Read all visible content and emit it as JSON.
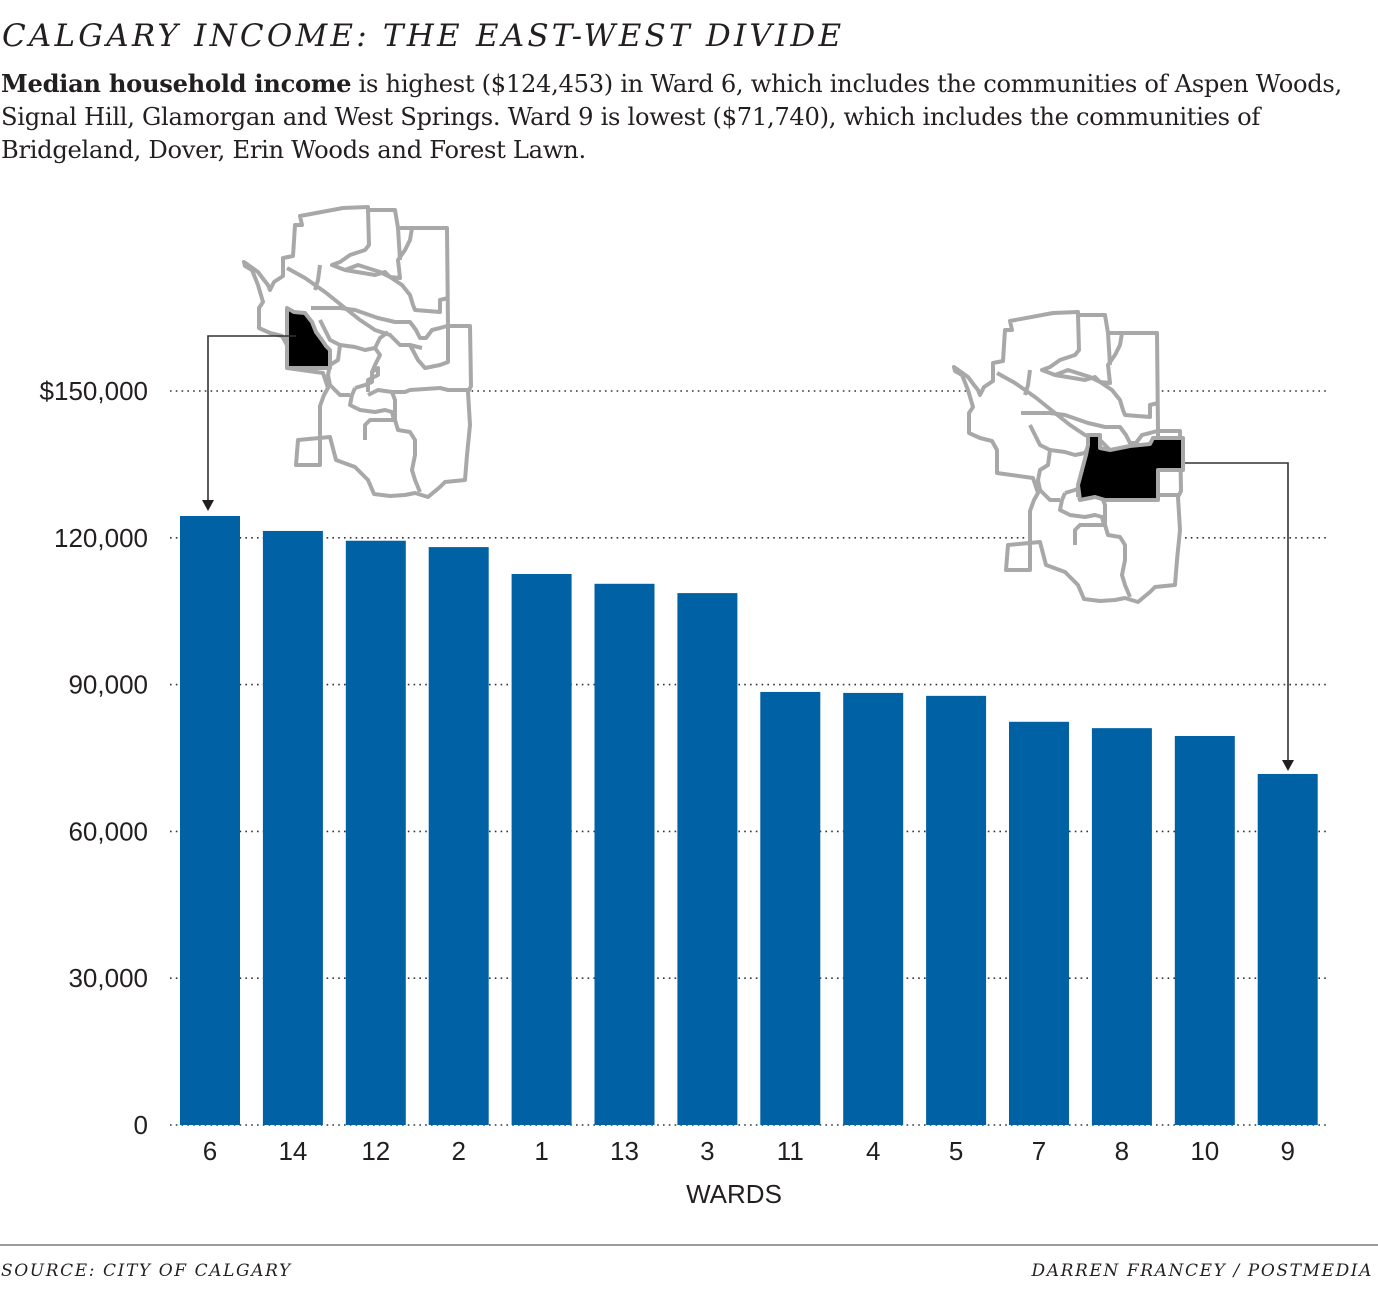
{
  "header": {
    "title": "CALGARY INCOME: THE EAST-WEST DIVIDE",
    "subtitle_bold": "Median household income",
    "subtitle_rest": " is highest ($124,453) in Ward 6, which includes the communities of Aspen Woods, Signal Hill, Glamorgan and West Springs. Ward 9 is lowest ($71,740), which includes the communities of Bridgeland, Dover, Erin Woods and Forest Lawn."
  },
  "footer": {
    "source": "SOURCE: CITY OF CALGARY",
    "credit": "DARREN FRANCEY / POSTMEDIA"
  },
  "colors": {
    "bar": "#0061a5",
    "text": "#231f20",
    "grid": "#333333",
    "map_stroke": "#a8a8a8",
    "map_highlight": "#000000",
    "rule": "#9c9c9c"
  },
  "chart_data": {
    "type": "bar",
    "title": "CALGARY INCOME: THE EAST-WEST DIVIDE",
    "subtitle": "Median household income by ward",
    "xlabel": "WARDS",
    "ylabel": "",
    "categories": [
      "6",
      "14",
      "12",
      "2",
      "1",
      "13",
      "3",
      "11",
      "4",
      "5",
      "7",
      "8",
      "10",
      "9"
    ],
    "values": [
      124453,
      121400,
      119400,
      118100,
      112600,
      110600,
      108700,
      88500,
      88300,
      87700,
      82400,
      81100,
      79500,
      71740
    ],
    "ylim": [
      0,
      150000
    ],
    "yticks": [
      0,
      30000,
      60000,
      90000,
      120000,
      150000
    ],
    "ytick_labels": [
      "0",
      "30,000",
      "60,000",
      "90,000",
      "120,000",
      "$150,000"
    ],
    "grid": "horizontal-dotted",
    "legend": null,
    "annotations": [
      {
        "type": "locator-map",
        "highlight_ward": "6",
        "points_to": "6",
        "note": "Ward 6 highlighted (west)"
      },
      {
        "type": "locator-map",
        "highlight_ward": "9",
        "points_to": "9",
        "note": "Ward 9 highlighted (east)"
      }
    ]
  }
}
